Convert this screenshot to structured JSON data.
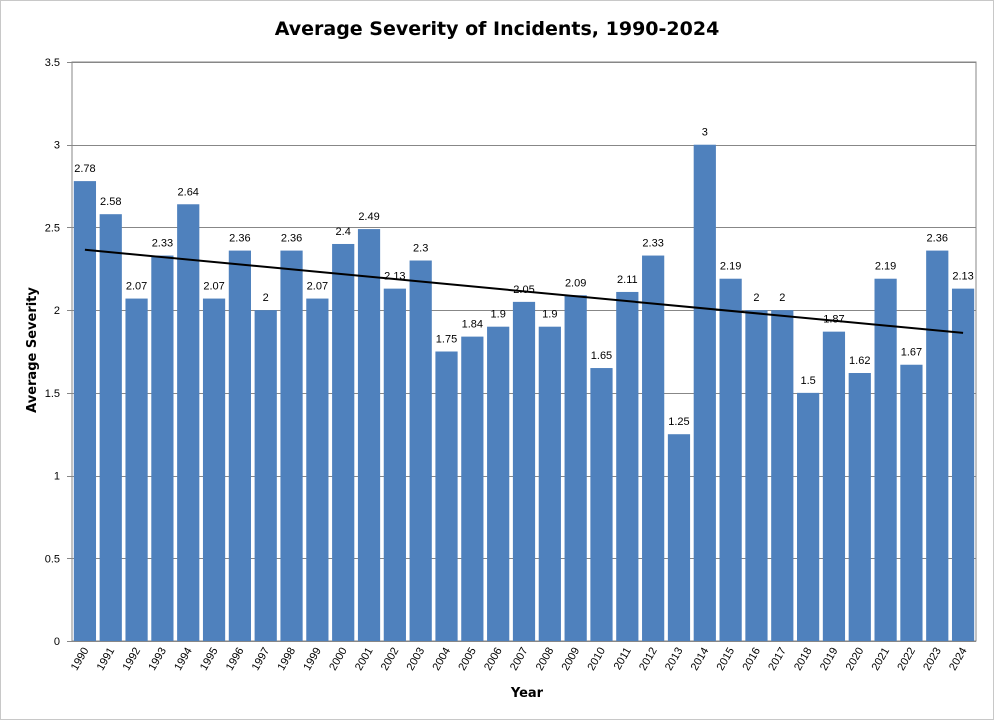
{
  "chart_data": {
    "type": "bar",
    "title": "Average Severity of Incidents, 1990-2024",
    "xlabel": "Year",
    "ylabel": "Average Severity",
    "ylim": [
      0,
      3.5
    ],
    "yticks": [
      0,
      0.5,
      1,
      1.5,
      2,
      2.5,
      3,
      3.5
    ],
    "ytick_labels": [
      "0",
      "0.5",
      "1",
      "1.5",
      "2",
      "2.5",
      "3",
      "3.5"
    ],
    "grid": true,
    "legend": "none",
    "bar_color": "#4f81bd",
    "trendline": {
      "type": "linear",
      "color": "#000000"
    },
    "categories": [
      "1990",
      "1991",
      "1992",
      "1993",
      "1994",
      "1995",
      "1996",
      "1997",
      "1998",
      "1999",
      "2000",
      "2001",
      "2002",
      "2003",
      "2004",
      "2005",
      "2006",
      "2007",
      "2008",
      "2009",
      "2010",
      "2011",
      "2012",
      "2013",
      "2014",
      "2015",
      "2016",
      "2017",
      "2018",
      "2019",
      "2020",
      "2021",
      "2022",
      "2023",
      "2024"
    ],
    "values": [
      2.78,
      2.58,
      2.07,
      2.33,
      2.64,
      2.07,
      2.36,
      2,
      2.36,
      2.07,
      2.4,
      2.49,
      2.13,
      2.3,
      1.75,
      1.84,
      1.9,
      2.05,
      1.9,
      2.09,
      1.65,
      2.11,
      2.33,
      1.25,
      3,
      2.19,
      2,
      2,
      1.5,
      1.87,
      1.62,
      2.19,
      1.67,
      2.36,
      2.13
    ],
    "value_labels": [
      "2.78",
      "2.58",
      "2.07",
      "2.33",
      "2.64",
      "2.07",
      "2.36",
      "2",
      "2.36",
      "2.07",
      "2.4",
      "2.49",
      "2.13",
      "2.3",
      "1.75",
      "1.84",
      "1.9",
      "2.05",
      "1.9",
      "2.09",
      "1.65",
      "2.11",
      "2.33",
      "1.25",
      "3",
      "2.19",
      "2",
      "2",
      "1.5",
      "1.87",
      "1.62",
      "2.19",
      "1.67",
      "2.36",
      "2.13"
    ]
  }
}
